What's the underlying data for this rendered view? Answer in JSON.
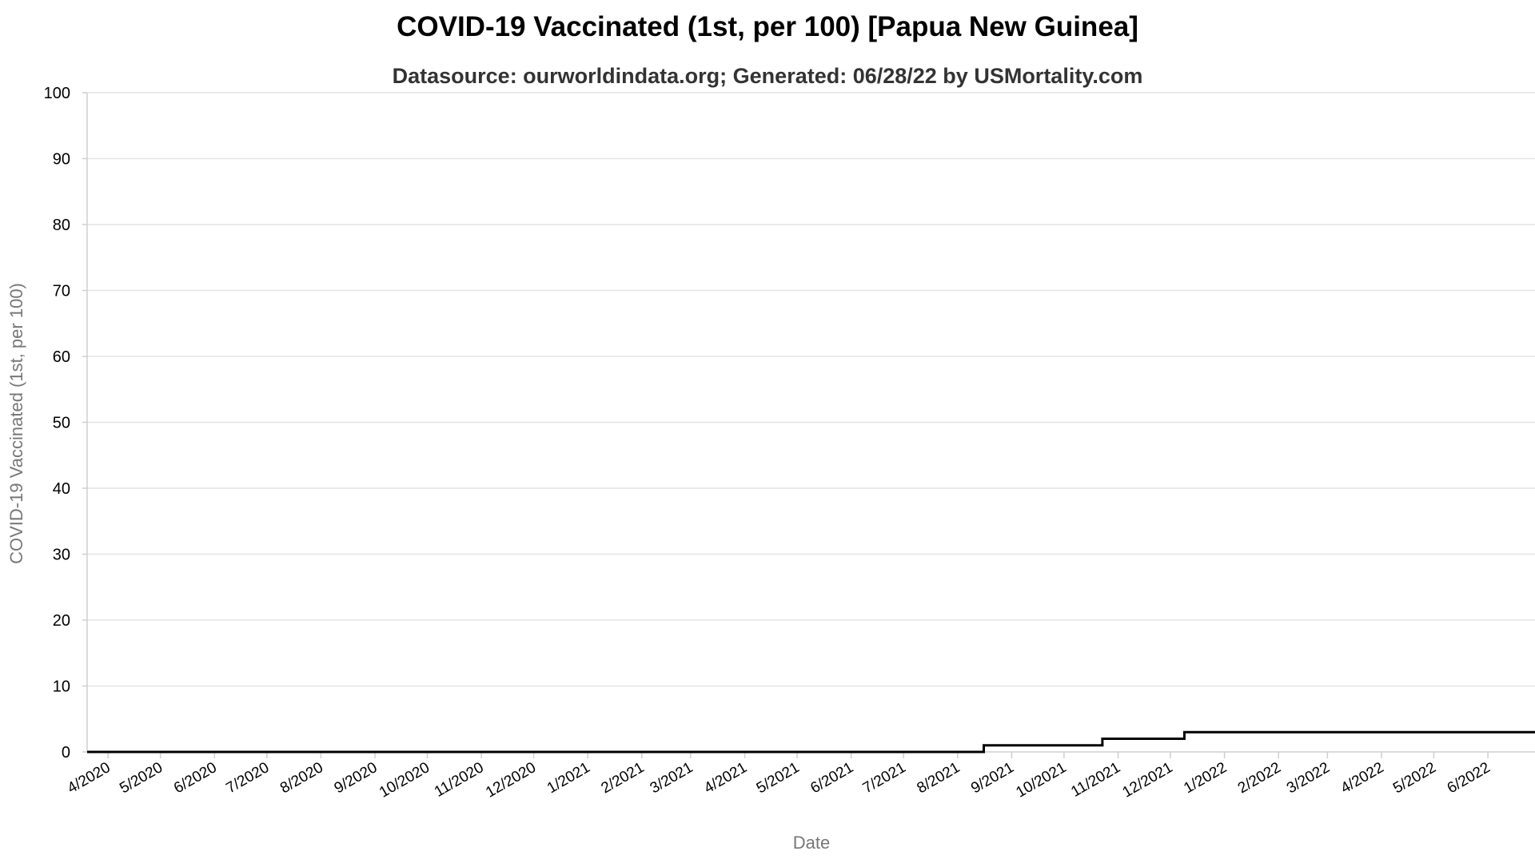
{
  "chart_data": {
    "type": "line",
    "title": "COVID-19 Vaccinated (1st, per 100) [Papua New Guinea]",
    "subtitle": "Datasource: ourworldindata.org; Generated: 06/28/22 by USMortality.com",
    "xlabel": "Date",
    "ylabel": "COVID-19 Vaccinated (1st, per 100)",
    "ylim": [
      0,
      100
    ],
    "yticks": [
      0,
      10,
      20,
      30,
      40,
      50,
      60,
      70,
      80,
      90,
      100
    ],
    "xlim": [
      "2020-03-20",
      "2022-06-28"
    ],
    "xticks": [
      {
        "date": "2020-04-01",
        "label": "4/2020"
      },
      {
        "date": "2020-05-01",
        "label": "5/2020"
      },
      {
        "date": "2020-06-01",
        "label": "6/2020"
      },
      {
        "date": "2020-07-01",
        "label": "7/2020"
      },
      {
        "date": "2020-08-01",
        "label": "8/2020"
      },
      {
        "date": "2020-09-01",
        "label": "9/2020"
      },
      {
        "date": "2020-10-01",
        "label": "10/2020"
      },
      {
        "date": "2020-11-01",
        "label": "11/2020"
      },
      {
        "date": "2020-12-01",
        "label": "12/2020"
      },
      {
        "date": "2021-01-01",
        "label": "1/2021"
      },
      {
        "date": "2021-02-01",
        "label": "2/2021"
      },
      {
        "date": "2021-03-01",
        "label": "3/2021"
      },
      {
        "date": "2021-04-01",
        "label": "4/2021"
      },
      {
        "date": "2021-05-01",
        "label": "5/2021"
      },
      {
        "date": "2021-06-01",
        "label": "6/2021"
      },
      {
        "date": "2021-07-01",
        "label": "7/2021"
      },
      {
        "date": "2021-08-01",
        "label": "8/2021"
      },
      {
        "date": "2021-09-01",
        "label": "9/2021"
      },
      {
        "date": "2021-10-01",
        "label": "10/2021"
      },
      {
        "date": "2021-11-01",
        "label": "11/2021"
      },
      {
        "date": "2021-12-01",
        "label": "12/2021"
      },
      {
        "date": "2022-01-01",
        "label": "1/2022"
      },
      {
        "date": "2022-02-01",
        "label": "2/2022"
      },
      {
        "date": "2022-03-01",
        "label": "3/2022"
      },
      {
        "date": "2022-04-01",
        "label": "4/2022"
      },
      {
        "date": "2022-05-01",
        "label": "5/2022"
      },
      {
        "date": "2022-06-01",
        "label": "6/2022"
      }
    ],
    "grid": true,
    "series": [
      {
        "color": "#000000",
        "step": true,
        "points": [
          {
            "x": "2020-03-20",
            "y": 0
          },
          {
            "x": "2021-08-15",
            "y": 0
          },
          {
            "x": "2021-08-16",
            "y": 1
          },
          {
            "x": "2021-10-22",
            "y": 1
          },
          {
            "x": "2021-10-23",
            "y": 2
          },
          {
            "x": "2021-12-08",
            "y": 2
          },
          {
            "x": "2021-12-09",
            "y": 3
          },
          {
            "x": "2022-06-28",
            "y": 3
          }
        ]
      }
    ]
  }
}
